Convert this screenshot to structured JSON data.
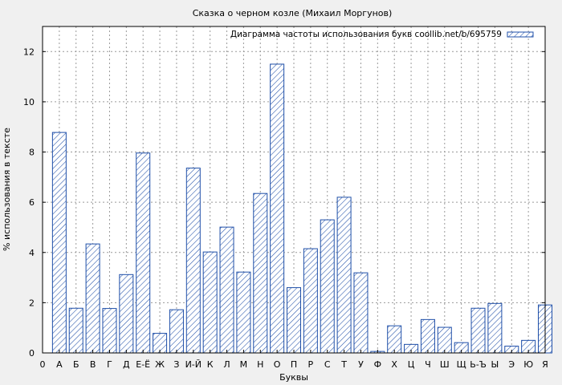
{
  "chart_data": {
    "type": "bar",
    "title": "Сказка о черном козле (Михаил Моргунов)",
    "xlabel": "Буквы",
    "ylabel": "% использования в тексте",
    "ylim": [
      0,
      13
    ],
    "yticks": [
      0,
      2,
      4,
      6,
      8,
      10,
      12
    ],
    "x_origin_label": "0",
    "grid": true,
    "legend_position": "top-right",
    "series": [
      {
        "name": "Диаграмма частоты использования букв coollib.net/b/695759",
        "color": "#1f4fa8",
        "fill_pattern": "diagonal-hatch"
      }
    ],
    "categories": [
      "А",
      "Б",
      "В",
      "Г",
      "Д",
      "Е-Ё",
      "Ж",
      "З",
      "И-Й",
      "К",
      "Л",
      "М",
      "Н",
      "О",
      "П",
      "Р",
      "С",
      "Т",
      "У",
      "Ф",
      "Х",
      "Ц",
      "Ч",
      "Ш",
      "Щ",
      "Ь-Ъ",
      "Ы",
      "Э",
      "Ю",
      "Я"
    ],
    "values": [
      8.78,
      1.78,
      4.34,
      1.77,
      3.12,
      7.96,
      0.78,
      1.72,
      7.36,
      4.02,
      5.01,
      3.22,
      6.35,
      11.5,
      2.6,
      4.15,
      5.3,
      6.2,
      3.19,
      0.06,
      1.08,
      0.34,
      1.33,
      1.02,
      0.41,
      1.78,
      1.97,
      0.27,
      0.5,
      1.91
    ]
  }
}
